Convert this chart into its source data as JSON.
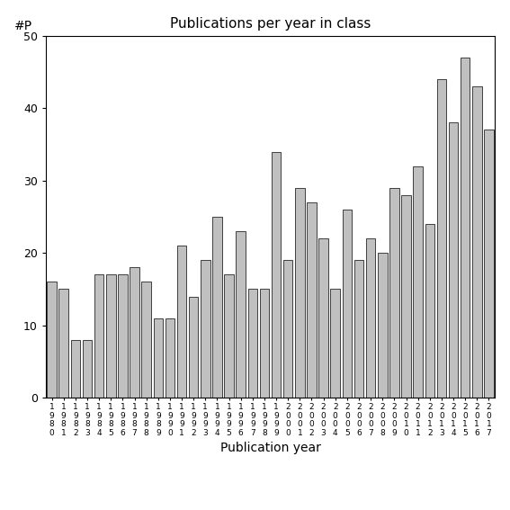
{
  "title": "Publications per year in class",
  "xlabel": "Publication year",
  "ylabel": "#P",
  "ylim": [
    0,
    50
  ],
  "yticks": [
    0,
    10,
    20,
    30,
    40,
    50
  ],
  "bar_color": "#c0c0c0",
  "bar_edgecolor": "#000000",
  "years": [
    1980,
    1981,
    1982,
    1983,
    1984,
    1985,
    1986,
    1987,
    1988,
    1989,
    1990,
    1991,
    1992,
    1993,
    1994,
    1995,
    1996,
    1997,
    1998,
    1999,
    2000,
    2001,
    2002,
    2003,
    2004,
    2005,
    2006,
    2007,
    2008,
    2009,
    2010,
    2011,
    2012,
    2013,
    2014,
    2015,
    2016,
    2017
  ],
  "values": [
    16,
    15,
    8,
    8,
    17,
    17,
    17,
    18,
    16,
    11,
    11,
    21,
    14,
    19,
    25,
    17,
    23,
    15,
    15,
    34,
    19,
    29,
    27,
    22,
    15,
    26,
    19,
    22,
    20,
    29,
    28,
    32,
    24,
    44,
    38,
    47,
    43,
    37
  ],
  "figsize": [
    5.67,
    5.67
  ],
  "dpi": 100
}
